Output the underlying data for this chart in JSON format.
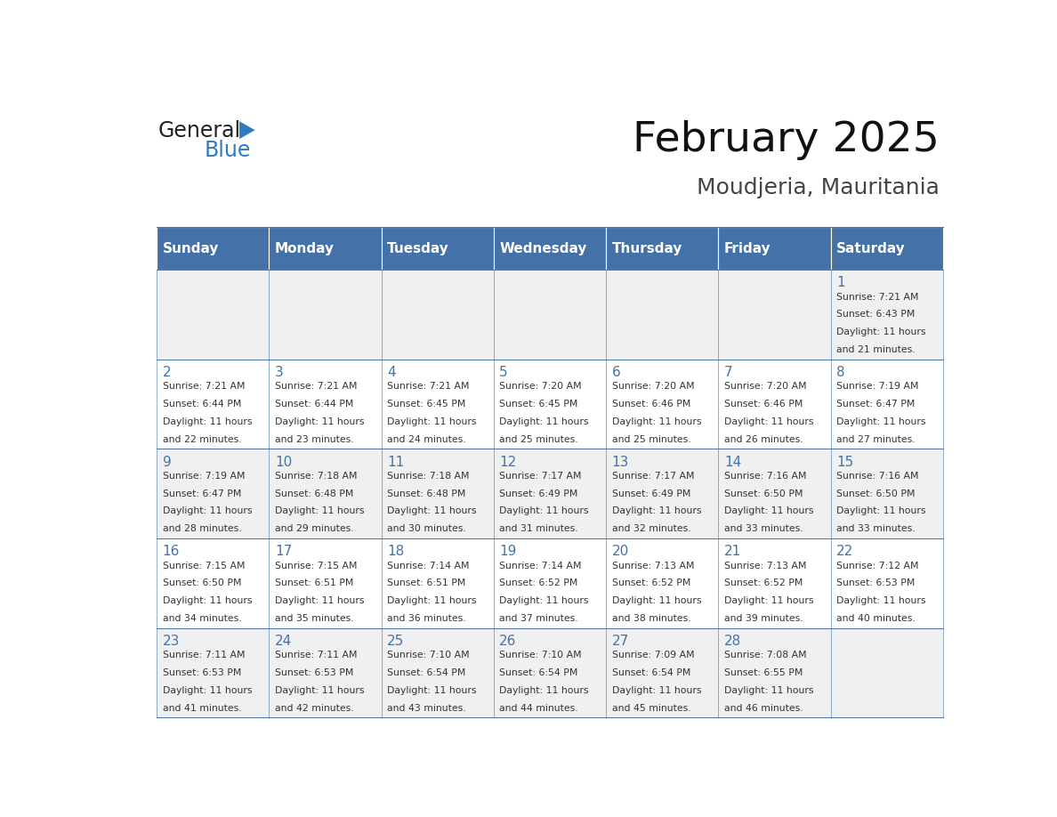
{
  "title": "February 2025",
  "subtitle": "Moudjeria, Mauritania",
  "days_of_week": [
    "Sunday",
    "Monday",
    "Tuesday",
    "Wednesday",
    "Thursday",
    "Friday",
    "Saturday"
  ],
  "header_bg": "#4472a8",
  "header_text": "#ffffff",
  "cell_bg_even": "#f0f0f0",
  "cell_bg_odd": "#ffffff",
  "cell_border": "#4472a8",
  "day_number_color": "#4472a8",
  "text_color": "#333333",
  "calendar_data": [
    {
      "day": 1,
      "col": 6,
      "row": 0,
      "sunrise": "7:21 AM",
      "sunset": "6:43 PM",
      "daylight_hours": "11 hours",
      "daylight_mins": "and 21 minutes."
    },
    {
      "day": 2,
      "col": 0,
      "row": 1,
      "sunrise": "7:21 AM",
      "sunset": "6:44 PM",
      "daylight_hours": "11 hours",
      "daylight_mins": "and 22 minutes."
    },
    {
      "day": 3,
      "col": 1,
      "row": 1,
      "sunrise": "7:21 AM",
      "sunset": "6:44 PM",
      "daylight_hours": "11 hours",
      "daylight_mins": "and 23 minutes."
    },
    {
      "day": 4,
      "col": 2,
      "row": 1,
      "sunrise": "7:21 AM",
      "sunset": "6:45 PM",
      "daylight_hours": "11 hours",
      "daylight_mins": "and 24 minutes."
    },
    {
      "day": 5,
      "col": 3,
      "row": 1,
      "sunrise": "7:20 AM",
      "sunset": "6:45 PM",
      "daylight_hours": "11 hours",
      "daylight_mins": "and 25 minutes."
    },
    {
      "day": 6,
      "col": 4,
      "row": 1,
      "sunrise": "7:20 AM",
      "sunset": "6:46 PM",
      "daylight_hours": "11 hours",
      "daylight_mins": "and 25 minutes."
    },
    {
      "day": 7,
      "col": 5,
      "row": 1,
      "sunrise": "7:20 AM",
      "sunset": "6:46 PM",
      "daylight_hours": "11 hours",
      "daylight_mins": "and 26 minutes."
    },
    {
      "day": 8,
      "col": 6,
      "row": 1,
      "sunrise": "7:19 AM",
      "sunset": "6:47 PM",
      "daylight_hours": "11 hours",
      "daylight_mins": "and 27 minutes."
    },
    {
      "day": 9,
      "col": 0,
      "row": 2,
      "sunrise": "7:19 AM",
      "sunset": "6:47 PM",
      "daylight_hours": "11 hours",
      "daylight_mins": "and 28 minutes."
    },
    {
      "day": 10,
      "col": 1,
      "row": 2,
      "sunrise": "7:18 AM",
      "sunset": "6:48 PM",
      "daylight_hours": "11 hours",
      "daylight_mins": "and 29 minutes."
    },
    {
      "day": 11,
      "col": 2,
      "row": 2,
      "sunrise": "7:18 AM",
      "sunset": "6:48 PM",
      "daylight_hours": "11 hours",
      "daylight_mins": "and 30 minutes."
    },
    {
      "day": 12,
      "col": 3,
      "row": 2,
      "sunrise": "7:17 AM",
      "sunset": "6:49 PM",
      "daylight_hours": "11 hours",
      "daylight_mins": "and 31 minutes."
    },
    {
      "day": 13,
      "col": 4,
      "row": 2,
      "sunrise": "7:17 AM",
      "sunset": "6:49 PM",
      "daylight_hours": "11 hours",
      "daylight_mins": "and 32 minutes."
    },
    {
      "day": 14,
      "col": 5,
      "row": 2,
      "sunrise": "7:16 AM",
      "sunset": "6:50 PM",
      "daylight_hours": "11 hours",
      "daylight_mins": "and 33 minutes."
    },
    {
      "day": 15,
      "col": 6,
      "row": 2,
      "sunrise": "7:16 AM",
      "sunset": "6:50 PM",
      "daylight_hours": "11 hours",
      "daylight_mins": "and 33 minutes."
    },
    {
      "day": 16,
      "col": 0,
      "row": 3,
      "sunrise": "7:15 AM",
      "sunset": "6:50 PM",
      "daylight_hours": "11 hours",
      "daylight_mins": "and 34 minutes."
    },
    {
      "day": 17,
      "col": 1,
      "row": 3,
      "sunrise": "7:15 AM",
      "sunset": "6:51 PM",
      "daylight_hours": "11 hours",
      "daylight_mins": "and 35 minutes."
    },
    {
      "day": 18,
      "col": 2,
      "row": 3,
      "sunrise": "7:14 AM",
      "sunset": "6:51 PM",
      "daylight_hours": "11 hours",
      "daylight_mins": "and 36 minutes."
    },
    {
      "day": 19,
      "col": 3,
      "row": 3,
      "sunrise": "7:14 AM",
      "sunset": "6:52 PM",
      "daylight_hours": "11 hours",
      "daylight_mins": "and 37 minutes."
    },
    {
      "day": 20,
      "col": 4,
      "row": 3,
      "sunrise": "7:13 AM",
      "sunset": "6:52 PM",
      "daylight_hours": "11 hours",
      "daylight_mins": "and 38 minutes."
    },
    {
      "day": 21,
      "col": 5,
      "row": 3,
      "sunrise": "7:13 AM",
      "sunset": "6:52 PM",
      "daylight_hours": "11 hours",
      "daylight_mins": "and 39 minutes."
    },
    {
      "day": 22,
      "col": 6,
      "row": 3,
      "sunrise": "7:12 AM",
      "sunset": "6:53 PM",
      "daylight_hours": "11 hours",
      "daylight_mins": "and 40 minutes."
    },
    {
      "day": 23,
      "col": 0,
      "row": 4,
      "sunrise": "7:11 AM",
      "sunset": "6:53 PM",
      "daylight_hours": "11 hours",
      "daylight_mins": "and 41 minutes."
    },
    {
      "day": 24,
      "col": 1,
      "row": 4,
      "sunrise": "7:11 AM",
      "sunset": "6:53 PM",
      "daylight_hours": "11 hours",
      "daylight_mins": "and 42 minutes."
    },
    {
      "day": 25,
      "col": 2,
      "row": 4,
      "sunrise": "7:10 AM",
      "sunset": "6:54 PM",
      "daylight_hours": "11 hours",
      "daylight_mins": "and 43 minutes."
    },
    {
      "day": 26,
      "col": 3,
      "row": 4,
      "sunrise": "7:10 AM",
      "sunset": "6:54 PM",
      "daylight_hours": "11 hours",
      "daylight_mins": "and 44 minutes."
    },
    {
      "day": 27,
      "col": 4,
      "row": 4,
      "sunrise": "7:09 AM",
      "sunset": "6:54 PM",
      "daylight_hours": "11 hours",
      "daylight_mins": "and 45 minutes."
    },
    {
      "day": 28,
      "col": 5,
      "row": 4,
      "sunrise": "7:08 AM",
      "sunset": "6:55 PM",
      "daylight_hours": "11 hours",
      "daylight_mins": "and 46 minutes."
    }
  ]
}
